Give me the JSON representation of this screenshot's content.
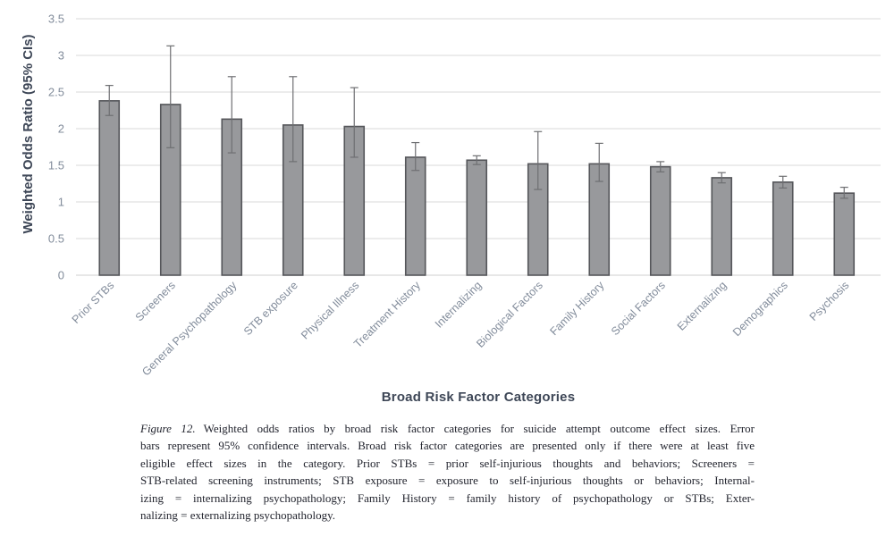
{
  "chart_data": {
    "type": "bar",
    "title": "",
    "xlabel": "Broad Risk Factor Categories",
    "ylabel": "Weighted Odds Ratio (95% CIs)",
    "ylim": [
      0,
      3.5
    ],
    "ytick_step": 0.5,
    "grid": true,
    "legend": "none",
    "error_bars": "95% confidence intervals",
    "categories": [
      "Prior STBs",
      "Screeners",
      "General Psychopathology",
      "STB exposure",
      "Physical Illness",
      "Treatment History",
      "Internalizing",
      "Biological Factors",
      "Family History",
      "Social Factors",
      "Externalizing",
      "Demographics",
      "Psychosis"
    ],
    "values": [
      2.38,
      2.33,
      2.13,
      2.05,
      2.03,
      1.61,
      1.57,
      1.52,
      1.52,
      1.48,
      1.33,
      1.27,
      1.12
    ],
    "ci_low": [
      2.18,
      1.74,
      1.67,
      1.55,
      1.61,
      1.43,
      1.51,
      1.17,
      1.28,
      1.41,
      1.26,
      1.19,
      1.05
    ],
    "ci_high": [
      2.59,
      3.13,
      2.71,
      2.71,
      2.56,
      1.81,
      1.63,
      1.96,
      1.8,
      1.55,
      1.4,
      1.35,
      1.2
    ]
  },
  "colors": {
    "bar_fill": "#98999c",
    "bar_border": "#55565a",
    "error": "#6e6f72",
    "gridline": "#d9d9d9",
    "axis_line": "#cfcfcf",
    "tick_label": "#828c9b",
    "axis_title": "#3e4757",
    "caption_text": "#22242e"
  },
  "caption": {
    "label": "Figure 12.",
    "lines": [
      "Weighted odds ratios by broad risk factor categories for suicide attempt outcome effect sizes. Error",
      "bars represent 95% confidence intervals. Broad risk factor categories are presented only if there were at least five",
      "eligible effect sizes in the category. Prior STBs = prior self-injurious thoughts and behaviors; Screeners =",
      "STB-related screening instruments; STB exposure = exposure to self-injurious thoughts or behaviors; Internal-",
      "izing = internalizing psychopathology; Family History = family history of psychopathology or STBs; Exter-",
      "nalizing = externalizing psychopathology."
    ]
  }
}
